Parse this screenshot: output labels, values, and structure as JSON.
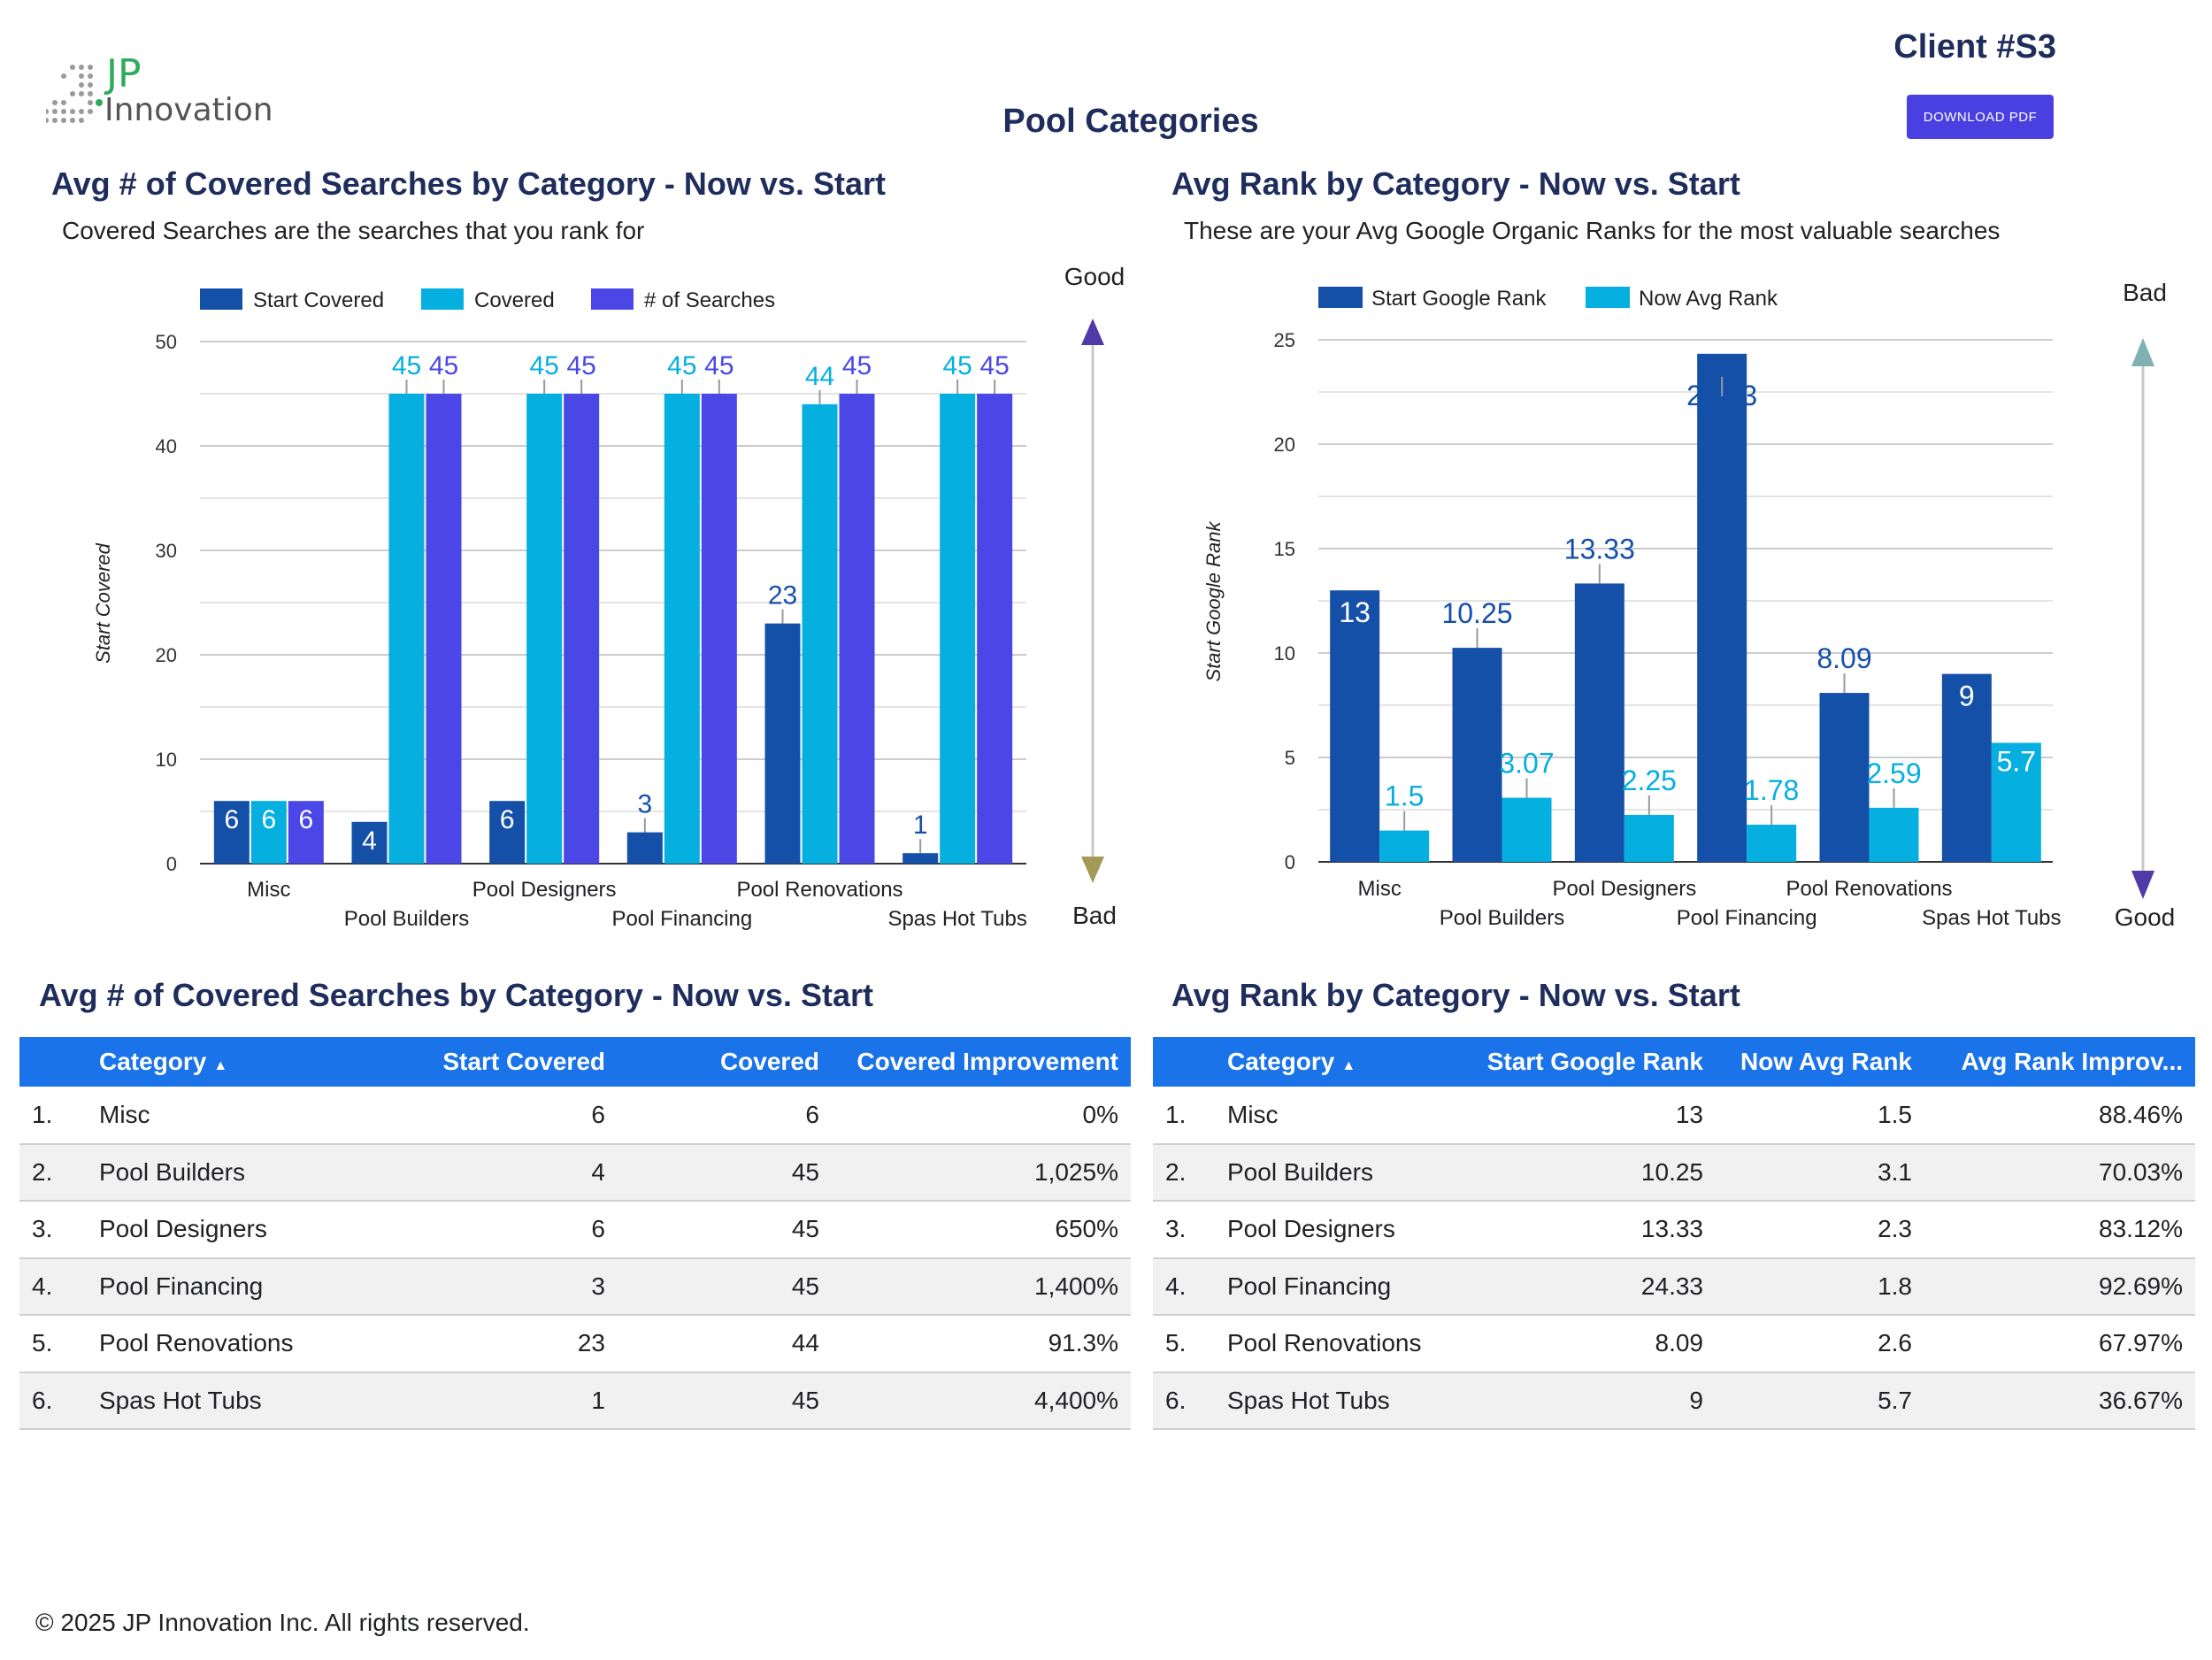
{
  "header": {
    "logo_jp": "JP",
    "logo_innovation": "Innovation",
    "client": "Client #S3",
    "download_label": "DOWNLOAD PDF",
    "page_title": "Pool Categories"
  },
  "chart1": {
    "title": "Avg # of Covered Searches by Category - Now vs. Start",
    "subtitle": "Covered Searches are the searches that you rank for",
    "good_label": "Good",
    "bad_label": "Bad"
  },
  "chart2": {
    "title": "Avg Rank by Category - Now vs. Start",
    "subtitle": "These are your Avg Google Organic Ranks for the most valuable searches",
    "bad_label": "Bad",
    "good_label": "Good"
  },
  "chart_data": [
    {
      "type": "bar",
      "categories": [
        "Misc",
        "Pool Builders",
        "Pool Designers",
        "Pool Financing",
        "Pool Renovations",
        "Spas Hot Tubs"
      ],
      "series": [
        {
          "name": "Start Covered",
          "values": [
            6,
            4,
            6,
            3,
            23,
            1
          ],
          "color": "#1550a8"
        },
        {
          "name": "Covered",
          "values": [
            6,
            45,
            45,
            45,
            44,
            45
          ],
          "color": "#05afe0"
        },
        {
          "name": "# of Searches",
          "values": [
            6,
            45,
            45,
            45,
            45,
            45
          ],
          "color": "#4a47e6"
        }
      ],
      "ylabel": "Start Covered",
      "ylim": [
        0,
        50
      ],
      "yticks": [
        0,
        10,
        20,
        30,
        40,
        50
      ],
      "legend": "top",
      "grid": true
    },
    {
      "type": "bar",
      "categories": [
        "Misc",
        "Pool Builders",
        "Pool Designers",
        "Pool Financing",
        "Pool Renovations",
        "Spas Hot Tubs"
      ],
      "series": [
        {
          "name": "Start Google Rank",
          "values": [
            13,
            10.25,
            13.33,
            24.33,
            8.09,
            9
          ],
          "color": "#1550a8"
        },
        {
          "name": "Now Avg Rank",
          "values": [
            1.5,
            3.07,
            2.25,
            1.78,
            2.59,
            5.7
          ],
          "color": "#05afe0"
        }
      ],
      "ylabel": "Start Google Rank",
      "ylim": [
        0,
        25
      ],
      "yticks": [
        0,
        5,
        10,
        15,
        20,
        25
      ],
      "legend": "top",
      "grid": true
    }
  ],
  "table1": {
    "title": "Avg # of Covered Searches by Category - Now vs. Start",
    "headers": [
      "Category",
      "Start Covered",
      "Covered",
      "Covered Improvement"
    ],
    "rows": [
      [
        "1.",
        "Misc",
        "6",
        "6",
        "0%"
      ],
      [
        "2.",
        "Pool Builders",
        "4",
        "45",
        "1,025%"
      ],
      [
        "3.",
        "Pool Designers",
        "6",
        "45",
        "650%"
      ],
      [
        "4.",
        "Pool Financing",
        "3",
        "45",
        "1,400%"
      ],
      [
        "5.",
        "Pool Renovations",
        "23",
        "44",
        "91.3%"
      ],
      [
        "6.",
        "Spas Hot Tubs",
        "1",
        "45",
        "4,400%"
      ]
    ]
  },
  "table2": {
    "title": "Avg Rank by Category - Now vs. Start",
    "headers": [
      "Category",
      "Start Google Rank",
      "Now Avg Rank",
      "Avg Rank Improv..."
    ],
    "rows": [
      [
        "1.",
        "Misc",
        "13",
        "1.5",
        "88.46%"
      ],
      [
        "2.",
        "Pool Builders",
        "10.25",
        "3.1",
        "70.03%"
      ],
      [
        "3.",
        "Pool Designers",
        "13.33",
        "2.3",
        "83.12%"
      ],
      [
        "4.",
        "Pool Financing",
        "24.33",
        "1.8",
        "92.69%"
      ],
      [
        "5.",
        "Pool Renovations",
        "8.09",
        "2.6",
        "67.97%"
      ],
      [
        "6.",
        "Spas Hot Tubs",
        "9",
        "5.7",
        "36.67%"
      ]
    ]
  },
  "footer": {
    "copyright": "© 2025 JP Innovation Inc.  All rights reserved."
  }
}
